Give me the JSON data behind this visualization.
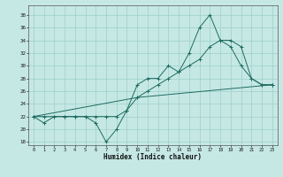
{
  "xlabel": "Humidex (Indice chaleur)",
  "ylabel": "",
  "bg_color": "#c5e8e5",
  "grid_color": "#9dcfcb",
  "line_color": "#1e6b60",
  "xlim": [
    -0.5,
    23.5
  ],
  "ylim": [
    17.5,
    39.5
  ],
  "yticks": [
    18,
    20,
    22,
    24,
    26,
    28,
    30,
    32,
    34,
    36,
    38
  ],
  "xticks": [
    0,
    1,
    2,
    3,
    4,
    5,
    6,
    7,
    8,
    9,
    10,
    11,
    12,
    13,
    14,
    15,
    16,
    17,
    18,
    19,
    20,
    21,
    22,
    23
  ],
  "series1_x": [
    0,
    1,
    2,
    3,
    4,
    5,
    6,
    7,
    8,
    9,
    10,
    11,
    12,
    13,
    14,
    15,
    16,
    17,
    18,
    19,
    20,
    21,
    22,
    23
  ],
  "series1_y": [
    22,
    21,
    22,
    22,
    22,
    22,
    21,
    18,
    20,
    23,
    27,
    28,
    28,
    30,
    29,
    32,
    36,
    38,
    34,
    33,
    30,
    28,
    27,
    27
  ],
  "series2_x": [
    0,
    1,
    2,
    3,
    4,
    5,
    6,
    7,
    8,
    9,
    10,
    11,
    12,
    13,
    14,
    15,
    16,
    17,
    18,
    19,
    20,
    21,
    22,
    23
  ],
  "series2_y": [
    22,
    22,
    22,
    22,
    22,
    22,
    22,
    22,
    22,
    23,
    25,
    26,
    27,
    28,
    29,
    30,
    31,
    33,
    34,
    34,
    33,
    28,
    27,
    27
  ],
  "series3_x": [
    0,
    10,
    23
  ],
  "series3_y": [
    22,
    25,
    27
  ]
}
